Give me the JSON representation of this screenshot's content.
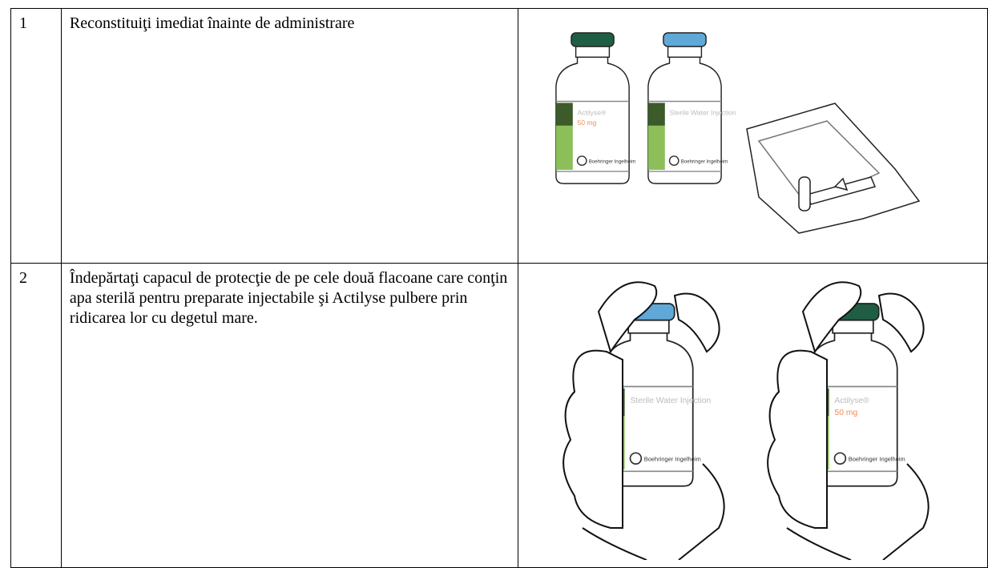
{
  "table": {
    "rows": [
      {
        "number": "1",
        "instruction": "Reconstituiţi imediat înainte de administrare",
        "vials": [
          {
            "name": "Actilyse®",
            "dose": "50 mg",
            "maker": "Boehringer Ingelheim"
          },
          {
            "name": "Sterile Water Injection",
            "maker": "Boehringer Ingelheim"
          }
        ]
      },
      {
        "number": "2",
        "instruction": "Îndepărtaţi capacul de protecţie de pe cele două flacoane care conţin apa sterilă pentru preparate injectabile şi Actilyse pulbere prin ridicarea lor cu degetul mare.",
        "vials": [
          {
            "name": "Sterile Water Injection",
            "maker": "Boehringer Ingelheim"
          },
          {
            "name": "Actilyse®",
            "dose": "50 mg",
            "maker": "Boehringer Ingelheim"
          }
        ]
      }
    ]
  }
}
